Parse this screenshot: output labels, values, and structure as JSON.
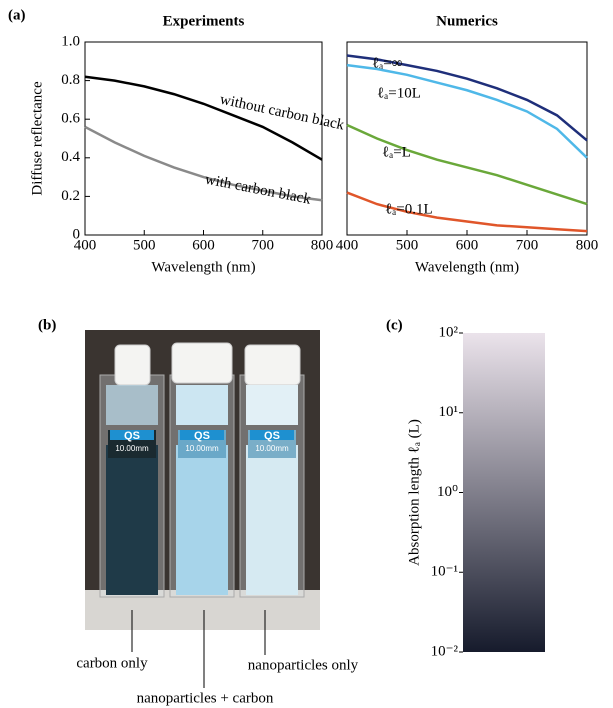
{
  "panel_labels": [
    "(a)",
    "(b)",
    "(c)"
  ],
  "chart_data": [
    {
      "type": "line",
      "title": "Experiments",
      "xlabel": "Wavelength (nm)",
      "ylabel": "Diffuse reflectance",
      "x": [
        400,
        450,
        500,
        550,
        600,
        650,
        700,
        750,
        800
      ],
      "series": [
        {
          "name": "without carbon black",
          "color": "#000000",
          "values": [
            0.82,
            0.8,
            0.77,
            0.73,
            0.68,
            0.62,
            0.56,
            0.48,
            0.39
          ]
        },
        {
          "name": "with carbon black",
          "color": "#8a8a8a",
          "values": [
            0.56,
            0.48,
            0.41,
            0.35,
            0.3,
            0.26,
            0.23,
            0.2,
            0.18
          ]
        }
      ],
      "xlim": [
        400,
        800
      ],
      "xticks": [
        400,
        500,
        600,
        700,
        800
      ],
      "ylim": [
        0,
        1
      ],
      "yticks": [
        0,
        0.2,
        0.4,
        0.6,
        0.8,
        {
          "value": 1,
          "label": "1.0"
        }
      ]
    },
    {
      "type": "line",
      "title": "Numerics",
      "xlabel": "Wavelength (nm)",
      "x": [
        400,
        450,
        500,
        550,
        600,
        650,
        700,
        750,
        800
      ],
      "series": [
        {
          "name": "ℓₐ=∞",
          "color": "#1f2f7a",
          "values": [
            0.93,
            0.91,
            0.88,
            0.85,
            0.81,
            0.76,
            0.7,
            0.62,
            0.49
          ]
        },
        {
          "name": "ℓₐ=10L",
          "color": "#4fb8e8",
          "values": [
            0.88,
            0.86,
            0.83,
            0.79,
            0.75,
            0.7,
            0.64,
            0.55,
            0.4
          ]
        },
        {
          "name": "ℓₐ=L",
          "color": "#6aa83a",
          "values": [
            0.57,
            0.5,
            0.44,
            0.39,
            0.35,
            0.31,
            0.26,
            0.21,
            0.16
          ]
        },
        {
          "name": "ℓₐ=0.1L",
          "color": "#e0562a",
          "values": [
            0.22,
            0.16,
            0.12,
            0.09,
            0.07,
            0.05,
            0.04,
            0.03,
            0.02
          ]
        }
      ],
      "xlim": [
        400,
        800
      ],
      "xticks": [
        400,
        500,
        600,
        700,
        800
      ],
      "ylim": [
        0,
        1
      ]
    },
    {
      "type": "colorbar",
      "ylabel": "Absorption length ℓₐ (L)",
      "log_scale": true,
      "colors": [
        "#161b2c",
        "#ebe3eb"
      ],
      "ylim": [
        0.01,
        100
      ],
      "yticks": [
        {
          "value": 0.01,
          "label": "10⁻²"
        },
        {
          "value": 0.1,
          "label": "10⁻¹"
        },
        {
          "value": 1,
          "label": "10⁰"
        },
        {
          "value": 10,
          "label": "10¹"
        },
        {
          "value": 100,
          "label": "10²"
        }
      ]
    }
  ],
  "photo": {
    "cuvette_text": [
      "QS",
      "10.00mm"
    ],
    "labels": [
      "carbon only",
      "nanoparticles + carbon",
      "nanoparticles only"
    ]
  }
}
